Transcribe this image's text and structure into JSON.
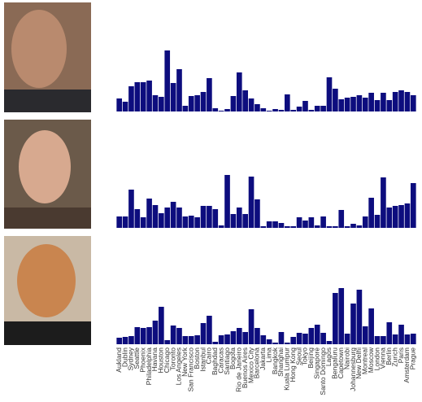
{
  "chart_data": [
    {
      "type": "bar",
      "color": "#0d0d7e",
      "ylim": [
        0,
        82
      ],
      "categories": [
        "Aukland",
        "Dublin",
        "Sydney",
        "Seattle",
        "Phoenix",
        "Philadelphia",
        "Havana",
        "Houston",
        "Chicago",
        "Toronto",
        "Los Angeles",
        "New York",
        "San Francisco",
        "Boston",
        "Istanbul",
        "Cairo",
        "Baghdad",
        "Caracas",
        "Santiago",
        "Bogota",
        "Rio de Janeiro",
        "Buenos Aires",
        "Mexico City",
        "Barcelona",
        "Jakarta",
        "Lima",
        "Bangkok",
        "Shanghai",
        "Kuala Lumpur",
        "Hong Kong",
        "Seoul",
        "Tokyo",
        "Beijing",
        "Singapore",
        "Santo Domingo",
        "Lagos",
        "Bengaluru",
        "Capetown",
        "Nairobi",
        "Johannesburg",
        "New Delhi",
        "Montreal",
        "Moscow",
        "London",
        "Vienna",
        "Berlin",
        "Zurich",
        "Paris",
        "Amsterdam",
        "Prague"
      ],
      "values": [
        16,
        12,
        31,
        36,
        36,
        38,
        20,
        18,
        75,
        35,
        52,
        7,
        19,
        20,
        24,
        41,
        4,
        1,
        3,
        19,
        48,
        26,
        16,
        9,
        4,
        1,
        3,
        2,
        21,
        2,
        6,
        13,
        2,
        7,
        7,
        42,
        28,
        15,
        17,
        18,
        20,
        17,
        23,
        14,
        23,
        14,
        24,
        26,
        24,
        20
      ]
    },
    {
      "type": "bar",
      "color": "#0d0d7e",
      "ylim": [
        0,
        82
      ],
      "values": [
        14,
        14,
        47,
        23,
        13,
        36,
        28,
        18,
        25,
        32,
        25,
        14,
        15,
        13,
        27,
        27,
        23,
        3,
        65,
        17,
        25,
        17,
        63,
        35,
        2,
        8,
        8,
        6,
        2,
        2,
        13,
        9,
        13,
        3,
        14,
        2,
        2,
        22,
        2,
        5,
        3,
        14,
        37,
        16,
        62,
        25,
        27,
        28,
        30,
        55
      ]
    },
    {
      "type": "bar",
      "color": "#0d0d7e",
      "ylim": [
        0,
        82
      ],
      "values": [
        8,
        9,
        10,
        21,
        20,
        21,
        29,
        46,
        5,
        23,
        20,
        10,
        10,
        11,
        26,
        35,
        3,
        11,
        12,
        16,
        20,
        15,
        43,
        20,
        11,
        6,
        2,
        15,
        2,
        9,
        14,
        13,
        20,
        24,
        14,
        4,
        63,
        69,
        13,
        50,
        67,
        22,
        44,
        10,
        10,
        27,
        12,
        24,
        12,
        13
      ]
    }
  ]
}
